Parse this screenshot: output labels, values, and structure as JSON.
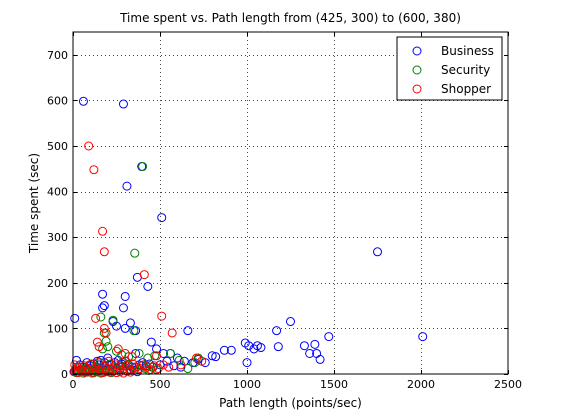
{
  "chart_data": {
    "type": "scatter",
    "title": "Time spent vs. Path length from (425, 300) to (600, 380)",
    "xlabel": "Path length (points/sec)",
    "ylabel": "Time spent (sec)",
    "xlim": [
      0,
      2500
    ],
    "ylim": [
      0,
      750
    ],
    "xticks": [
      "0",
      "500",
      "1000",
      "1500",
      "2000",
      "2500"
    ],
    "yticks": [
      "0",
      "100",
      "200",
      "300",
      "400",
      "500",
      "600",
      "700"
    ],
    "xtick_values": [
      0,
      500,
      1000,
      1500,
      2000,
      2500
    ],
    "ytick_values": [
      0,
      100,
      200,
      300,
      400,
      500,
      600,
      700
    ],
    "grid": true,
    "marker": "open-circle",
    "legend_position": "top-right",
    "series": [
      {
        "name": "Business",
        "color": "#0000ff",
        "points": [
          [
            60,
            598
          ],
          [
            290,
            592
          ],
          [
            310,
            412
          ],
          [
            395,
            455
          ],
          [
            510,
            343
          ],
          [
            1750,
            268
          ],
          [
            2010,
            82
          ],
          [
            430,
            192
          ],
          [
            370,
            212
          ],
          [
            170,
            175
          ],
          [
            180,
            150
          ],
          [
            170,
            145
          ],
          [
            300,
            170
          ],
          [
            290,
            145
          ],
          [
            330,
            112
          ],
          [
            360,
            95
          ],
          [
            300,
            100
          ],
          [
            250,
            105
          ],
          [
            230,
            115
          ],
          [
            450,
            70
          ],
          [
            10,
            122
          ],
          [
            360,
            45
          ],
          [
            480,
            55
          ],
          [
            520,
            45
          ],
          [
            560,
            45
          ],
          [
            600,
            35
          ],
          [
            640,
            28
          ],
          [
            660,
            95
          ],
          [
            690,
            25
          ],
          [
            720,
            32
          ],
          [
            760,
            25
          ],
          [
            800,
            40
          ],
          [
            820,
            38
          ],
          [
            870,
            52
          ],
          [
            910,
            52
          ],
          [
            990,
            68
          ],
          [
            1000,
            25
          ],
          [
            1010,
            62
          ],
          [
            1040,
            55
          ],
          [
            1060,
            62
          ],
          [
            1080,
            58
          ],
          [
            1170,
            95
          ],
          [
            1180,
            60
          ],
          [
            1250,
            115
          ],
          [
            1330,
            62
          ],
          [
            1360,
            45
          ],
          [
            1390,
            65
          ],
          [
            1400,
            45
          ],
          [
            1420,
            32
          ],
          [
            1470,
            82
          ],
          [
            20,
            30
          ],
          [
            40,
            20
          ],
          [
            60,
            15
          ],
          [
            80,
            25
          ],
          [
            100,
            18
          ],
          [
            120,
            22
          ],
          [
            140,
            28
          ],
          [
            150,
            20
          ],
          [
            160,
            30
          ],
          [
            180,
            25
          ],
          [
            200,
            35
          ],
          [
            220,
            20
          ],
          [
            240,
            25
          ],
          [
            260,
            30
          ],
          [
            270,
            18
          ],
          [
            280,
            22
          ],
          [
            300,
            28
          ],
          [
            320,
            20
          ],
          [
            340,
            15
          ],
          [
            380,
            20
          ],
          [
            400,
            25
          ],
          [
            420,
            18
          ],
          [
            440,
            22
          ],
          [
            460,
            15
          ],
          [
            500,
            20
          ],
          [
            540,
            28
          ],
          [
            580,
            18
          ],
          [
            620,
            15
          ],
          [
            10,
            5
          ],
          [
            30,
            8
          ],
          [
            50,
            10
          ],
          [
            70,
            6
          ],
          [
            90,
            12
          ],
          [
            110,
            8
          ],
          [
            130,
            10
          ],
          [
            150,
            7
          ],
          [
            170,
            12
          ],
          [
            190,
            8
          ],
          [
            210,
            10
          ],
          [
            230,
            6
          ],
          [
            250,
            12
          ],
          [
            270,
            9
          ],
          [
            290,
            11
          ],
          [
            310,
            7
          ],
          [
            330,
            10
          ],
          [
            350,
            8
          ],
          [
            370,
            5
          ]
        ]
      },
      {
        "name": "Security",
        "color": "#008000",
        "points": [
          [
            400,
            455
          ],
          [
            355,
            265
          ],
          [
            160,
            125
          ],
          [
            230,
            118
          ],
          [
            350,
            95
          ],
          [
            180,
            90
          ],
          [
            190,
            72
          ],
          [
            200,
            60
          ],
          [
            170,
            55
          ],
          [
            250,
            50
          ],
          [
            280,
            42
          ],
          [
            320,
            38
          ],
          [
            380,
            45
          ],
          [
            430,
            35
          ],
          [
            470,
            40
          ],
          [
            560,
            45
          ],
          [
            610,
            30
          ],
          [
            660,
            12
          ],
          [
            700,
            25
          ],
          [
            720,
            35
          ],
          [
            15,
            10
          ],
          [
            35,
            15
          ],
          [
            55,
            8
          ],
          [
            75,
            12
          ],
          [
            95,
            20
          ],
          [
            115,
            10
          ],
          [
            135,
            15
          ],
          [
            155,
            25
          ],
          [
            175,
            18
          ],
          [
            195,
            12
          ],
          [
            215,
            22
          ],
          [
            235,
            15
          ],
          [
            255,
            10
          ],
          [
            275,
            18
          ],
          [
            295,
            12
          ],
          [
            315,
            20
          ],
          [
            335,
            8
          ],
          [
            355,
            15
          ],
          [
            375,
            10
          ],
          [
            395,
            18
          ],
          [
            415,
            12
          ],
          [
            435,
            8
          ],
          [
            455,
            15
          ],
          [
            480,
            10
          ],
          [
            20,
            3
          ],
          [
            40,
            5
          ],
          [
            60,
            2
          ],
          [
            80,
            4
          ],
          [
            100,
            6
          ],
          [
            120,
            3
          ],
          [
            140,
            5
          ],
          [
            160,
            2
          ],
          [
            180,
            4
          ],
          [
            200,
            6
          ],
          [
            220,
            3
          ]
        ]
      },
      {
        "name": "Shopper",
        "color": "#ff0000",
        "points": [
          [
            90,
            500
          ],
          [
            120,
            448
          ],
          [
            170,
            313
          ],
          [
            180,
            268
          ],
          [
            410,
            218
          ],
          [
            510,
            127
          ],
          [
            130,
            122
          ],
          [
            190,
            90
          ],
          [
            180,
            100
          ],
          [
            140,
            70
          ],
          [
            150,
            60
          ],
          [
            260,
            55
          ],
          [
            300,
            45
          ],
          [
            340,
            38
          ],
          [
            480,
            40
          ],
          [
            570,
            90
          ],
          [
            620,
            20
          ],
          [
            710,
            35
          ],
          [
            740,
            28
          ],
          [
            10,
            20
          ],
          [
            25,
            15
          ],
          [
            45,
            10
          ],
          [
            65,
            18
          ],
          [
            85,
            12
          ],
          [
            105,
            22
          ],
          [
            125,
            15
          ],
          [
            145,
            25
          ],
          [
            165,
            10
          ],
          [
            185,
            18
          ],
          [
            205,
            28
          ],
          [
            225,
            12
          ],
          [
            245,
            20
          ],
          [
            265,
            15
          ],
          [
            285,
            25
          ],
          [
            305,
            18
          ],
          [
            325,
            10
          ],
          [
            345,
            22
          ],
          [
            365,
            15
          ],
          [
            385,
            12
          ],
          [
            405,
            20
          ],
          [
            425,
            15
          ],
          [
            445,
            10
          ],
          [
            465,
            18
          ],
          [
            490,
            12
          ],
          [
            520,
            20
          ],
          [
            550,
            15
          ],
          [
            5,
            5
          ],
          [
            15,
            8
          ],
          [
            30,
            3
          ],
          [
            50,
            6
          ],
          [
            70,
            4
          ],
          [
            90,
            7
          ],
          [
            110,
            2
          ],
          [
            130,
            5
          ],
          [
            150,
            8
          ],
          [
            170,
            3
          ],
          [
            190,
            6
          ],
          [
            210,
            4
          ],
          [
            230,
            7
          ],
          [
            250,
            3
          ],
          [
            270,
            5
          ],
          [
            290,
            2
          ],
          [
            310,
            6
          ],
          [
            330,
            4
          ]
        ]
      }
    ]
  }
}
